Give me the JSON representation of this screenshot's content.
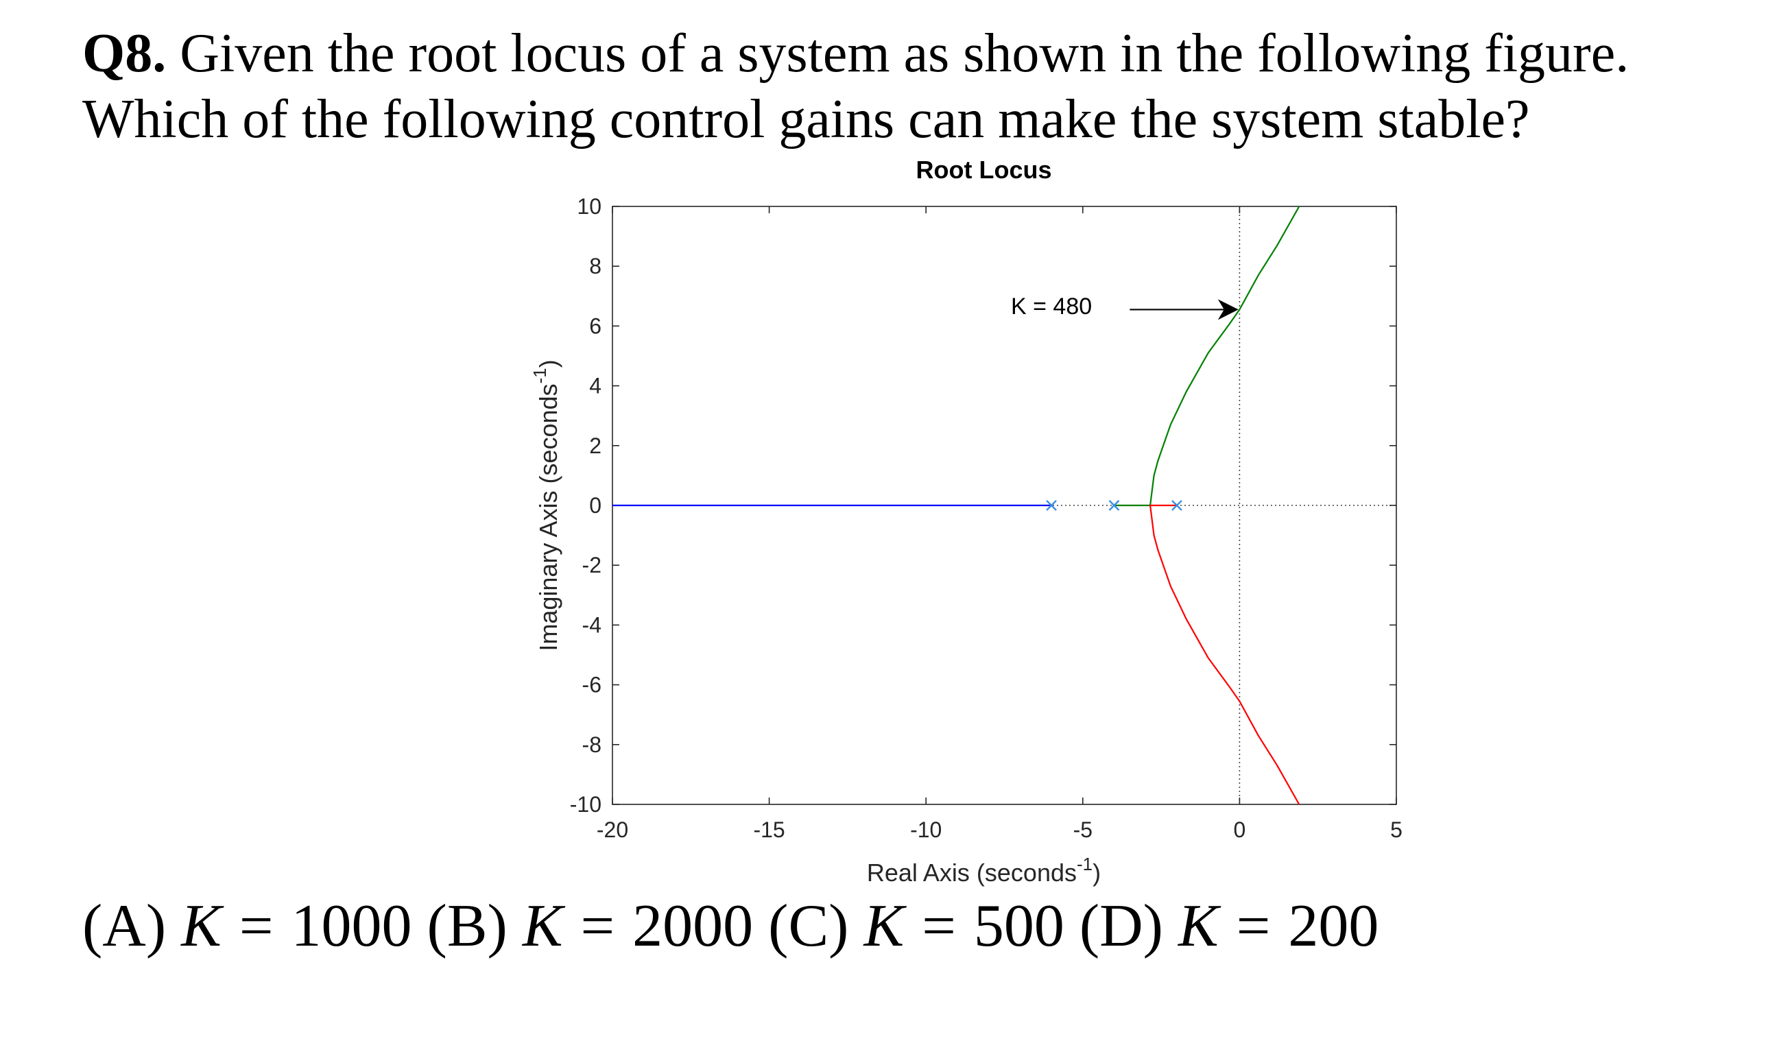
{
  "question": {
    "number": "Q8.",
    "line1": "Given the root locus of a system as shown in the following figure.",
    "line2": "Which of the following control gains can make the system stable?"
  },
  "chart_data": {
    "type": "line",
    "title": "Root Locus",
    "xlabel": "Real Axis (seconds",
    "xlabel_sup": "-1",
    "xlabel_end": ")",
    "ylabel": "Imaginary Axis (seconds",
    "ylabel_sup": "-1",
    "ylabel_end": ")",
    "xlim": [
      -20,
      5
    ],
    "ylim": [
      -10,
      10
    ],
    "xticks": [
      -20,
      -15,
      -10,
      -5,
      0,
      5
    ],
    "yticks": [
      -10,
      -8,
      -6,
      -4,
      -2,
      0,
      2,
      4,
      6,
      8,
      10
    ],
    "grid": false,
    "poles": [
      [
        -6,
        0
      ],
      [
        -4,
        0
      ],
      [
        -2,
        0
      ]
    ],
    "colors": {
      "blue": "#0000ff",
      "green": "#008000",
      "red": "#ff0000",
      "pole": "#3c8ee0"
    },
    "series": [
      {
        "color": "blue",
        "points": [
          [
            -20,
            0
          ],
          [
            -6,
            0
          ]
        ]
      },
      {
        "color": "green",
        "points": [
          [
            -4,
            0
          ],
          [
            -2.85,
            0
          ],
          [
            -2.73,
            1.0
          ],
          [
            -2.6,
            1.5
          ],
          [
            -2.2,
            2.7
          ],
          [
            -1.7,
            3.8
          ],
          [
            -1.0,
            5.1
          ],
          [
            -0.3,
            6.1
          ],
          [
            0,
            6.55
          ],
          [
            0.6,
            7.7
          ],
          [
            1.2,
            8.7
          ],
          [
            1.9,
            10
          ]
        ]
      },
      {
        "color": "red",
        "points": [
          [
            -2,
            0
          ],
          [
            -2.85,
            0
          ],
          [
            -2.73,
            -1.0
          ],
          [
            -2.6,
            -1.5
          ],
          [
            -2.2,
            -2.7
          ],
          [
            -1.7,
            -3.8
          ],
          [
            -1.0,
            -5.1
          ],
          [
            -0.3,
            -6.1
          ],
          [
            0,
            -6.55
          ],
          [
            0.6,
            -7.7
          ],
          [
            1.2,
            -8.7
          ],
          [
            1.9,
            -10
          ]
        ]
      }
    ],
    "annotation": {
      "text": "K = 480",
      "text_at": [
        -6.0,
        6.4
      ],
      "arrow_from": [
        -3.5,
        6.55
      ],
      "arrow_to": [
        -0.1,
        6.55
      ]
    }
  },
  "answers": [
    {
      "label": "(A)",
      "var": "K",
      "eq": "=",
      "value": "1000"
    },
    {
      "label": "(B)",
      "var": "K",
      "eq": "=",
      "value": "2000"
    },
    {
      "label": "(C)",
      "var": "K",
      "eq": "=",
      "value": "500"
    },
    {
      "label": "(D)",
      "var": "K",
      "eq": "=",
      "value": "200"
    }
  ]
}
